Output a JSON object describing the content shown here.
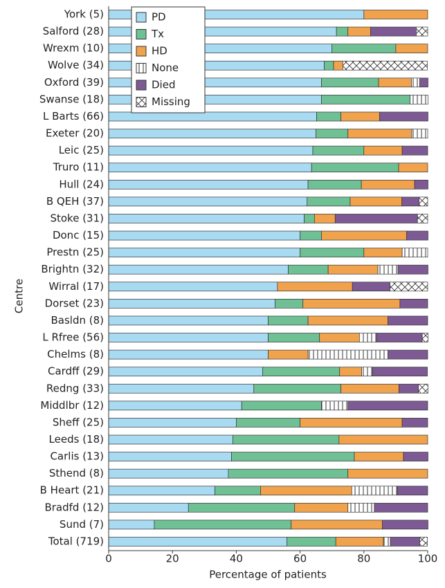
{
  "chart_data": {
    "type": "stacked-barh",
    "x_label": "Percentage of patients",
    "y_label": "Centre",
    "categories": [
      "York  (5)",
      "Salford (28)",
      "Wrexm (10)",
      "Wolve (34)",
      "Oxford (39)",
      "Swanse (18)",
      "L Barts (66)",
      "Exeter (20)",
      "Leic (25)",
      "Truro (11)",
      "Hull (24)",
      "B QEH (37)",
      "Stoke (31)",
      "Donc (15)",
      "Prestn (25)",
      "Brightn (32)",
      "Wirral (17)",
      "Dorset (23)",
      "Basldn (8)",
      "L Rfree (56)",
      "Chelms (8)",
      "Cardff (29)",
      "Redng (33)",
      "Middlbr (12)",
      "Sheff (25)",
      "Leeds (18)",
      "Carlis (13)",
      "Sthend (8)",
      "B Heart (21)",
      "Bradfd (12)",
      "Sund (7)",
      "Total (719)"
    ],
    "series": [
      {
        "name": "PD",
        "color": "#a8daf2",
        "values": [
          80,
          71.4,
          70,
          67.6,
          66.7,
          66.7,
          65.2,
          65,
          64,
          63.6,
          62.5,
          62.2,
          61.3,
          60,
          60,
          56.3,
          52.9,
          52.2,
          50,
          50,
          50,
          48.3,
          45.5,
          41.7,
          40,
          38.9,
          38.5,
          37.5,
          33.3,
          25,
          14.3,
          55.9
        ]
      },
      {
        "name": "Tx",
        "color": "#6fc095",
        "values": [
          0,
          3.6,
          20,
          2.9,
          17.9,
          27.8,
          7.6,
          10,
          16,
          27.3,
          16.7,
          13.5,
          3.2,
          6.7,
          20,
          12.5,
          0,
          8.7,
          12.5,
          16.1,
          0,
          24.1,
          27.3,
          25,
          20,
          33.3,
          38.5,
          37.5,
          14.3,
          33.3,
          42.9,
          15.3
        ]
      },
      {
        "name": "HD",
        "color": "#f0a24c",
        "values": [
          20,
          7.1,
          10,
          2.9,
          10.3,
          0,
          12.1,
          20,
          12,
          9.1,
          16.7,
          16.2,
          6.5,
          26.7,
          12,
          15.6,
          23.5,
          30.4,
          25,
          12.5,
          12.5,
          6.9,
          18.2,
          0,
          32,
          27.8,
          15.4,
          25,
          28.6,
          16.7,
          28.6,
          14.9
        ]
      },
      {
        "name": "None",
        "color": "#ffffff",
        "hatch": "vertical",
        "values": [
          0,
          0,
          0,
          0,
          2.6,
          5.6,
          0,
          5,
          0,
          0,
          0,
          0,
          0,
          0,
          8,
          6.3,
          0,
          0,
          0,
          5.4,
          25,
          3.4,
          0,
          8.3,
          0,
          0,
          0,
          0,
          14.3,
          8.3,
          0,
          2.2
        ]
      },
      {
        "name": "Died",
        "color": "#7d5a94",
        "values": [
          0,
          14.3,
          0,
          0,
          2.6,
          0,
          15.2,
          0,
          8,
          0,
          4.2,
          5.4,
          25.8,
          6.7,
          0,
          9.4,
          11.8,
          8.7,
          12.5,
          14.3,
          12.5,
          17.2,
          6.1,
          25,
          8,
          0,
          7.7,
          0,
          9.5,
          16.7,
          14.3,
          9.2
        ]
      },
      {
        "name": "Missing",
        "color": "#ffffff",
        "hatch": "cross",
        "values": [
          0,
          3.6,
          0,
          26.5,
          0,
          0,
          0,
          0,
          0,
          0,
          0,
          2.7,
          3.2,
          0,
          0,
          0,
          11.8,
          0,
          0,
          1.8,
          0,
          0,
          3,
          0,
          0,
          0,
          0,
          0,
          0,
          0,
          0,
          2.4
        ]
      }
    ],
    "xlim": [
      0,
      100
    ],
    "xticks": [
      0,
      20,
      40,
      60,
      80,
      100
    ],
    "legend": "upper-left"
  }
}
